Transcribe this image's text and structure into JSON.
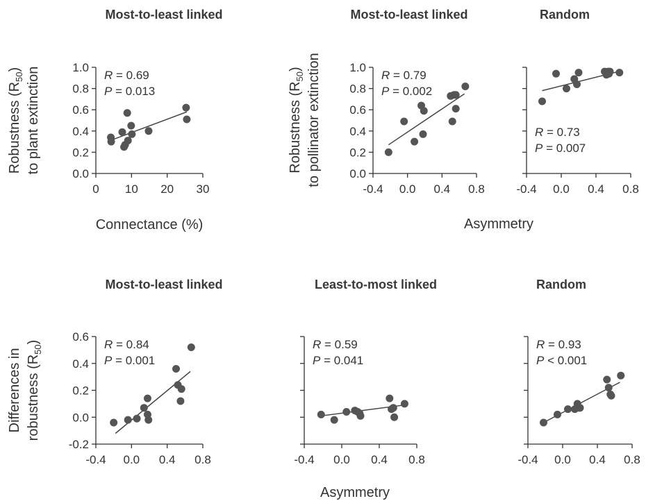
{
  "figure": {
    "shared_labels": {
      "asymmetry_top": "Asymmetry",
      "asymmetry_bottom": "Asymmetry",
      "robustness_pollinator_line1": "Robustness (R",
      "robustness_pollinator_sub": "50",
      "robustness_pollinator_close": ")",
      "robustness_pollinator_line2": "to pollinator extinction"
    }
  },
  "chart_data": [
    {
      "type": "scatter",
      "title": "Most-to-least linked",
      "xlabel": "Connectance (%)",
      "ylabel_line1": "Robustness (R",
      "ylabel_sub": "50",
      "ylabel_close": ")",
      "ylabel_line2": "to plant extinction",
      "xlim": [
        0,
        30
      ],
      "ylim": [
        0,
        1.0
      ],
      "xticks": [
        0,
        10,
        20,
        30
      ],
      "yticks": [
        0.0,
        0.2,
        0.4,
        0.6,
        0.8,
        1.0
      ],
      "xtick_labels": [
        "0",
        "10",
        "20",
        "30"
      ],
      "ytick_labels": [
        "0.0",
        "0.2",
        "0.4",
        "0.6",
        "0.8",
        "1.0"
      ],
      "stat_R": "= 0.69",
      "stat_P": "= 0.013",
      "stat_pos": "top-left",
      "x": [
        4.2,
        4.3,
        7.4,
        7.9,
        8.2,
        8.8,
        9.0,
        9.9,
        10.1,
        14.8,
        25.3,
        25.5
      ],
      "y": [
        0.34,
        0.3,
        0.39,
        0.25,
        0.27,
        0.57,
        0.31,
        0.45,
        0.37,
        0.4,
        0.62,
        0.51
      ],
      "fit": [
        [
          4,
          0.31
        ],
        [
          25.5,
          0.58
        ]
      ]
    },
    {
      "type": "scatter",
      "title": "Most-to-least linked",
      "xlim": [
        -0.4,
        0.8
      ],
      "ylim": [
        0,
        1.0
      ],
      "xticks": [
        -0.4,
        0.0,
        0.4,
        0.8
      ],
      "yticks": [
        0.0,
        0.2,
        0.4,
        0.6,
        0.8,
        1.0
      ],
      "xtick_labels": [
        "-0.4",
        "0.0",
        "0.4",
        "0.8"
      ],
      "ytick_labels": [
        "0.0",
        "0.2",
        "0.4",
        "0.6",
        "0.8",
        "1.0"
      ],
      "stat_R": "= 0.79",
      "stat_P": "= 0.002",
      "stat_pos": "top-left",
      "x": [
        -0.22,
        -0.04,
        0.08,
        0.16,
        0.18,
        0.19,
        0.5,
        0.52,
        0.54,
        0.56,
        0.56,
        0.67
      ],
      "y": [
        0.2,
        0.49,
        0.3,
        0.64,
        0.37,
        0.59,
        0.73,
        0.49,
        0.74,
        0.74,
        0.61,
        0.82
      ],
      "fit": [
        [
          -0.22,
          0.27
        ],
        [
          0.66,
          0.75
        ]
      ]
    },
    {
      "type": "scatter",
      "title": "Random",
      "xlim": [
        -0.4,
        0.8
      ],
      "ylim": [
        0,
        1.0
      ],
      "xticks": [
        -0.4,
        0.0,
        0.4,
        0.8
      ],
      "yticks": [
        0.0,
        0.2,
        0.4,
        0.6,
        0.8,
        1.0
      ],
      "xtick_labels": [
        "-0.4",
        "0.0",
        "0.4",
        "0.8"
      ],
      "ytick_labels": [],
      "stat_R": "= 0.73",
      "stat_P": "= 0.007",
      "stat_pos": "bottom-left",
      "x": [
        -0.22,
        -0.06,
        0.06,
        0.15,
        0.18,
        0.2,
        0.5,
        0.52,
        0.54,
        0.55,
        0.56,
        0.67
      ],
      "y": [
        0.68,
        0.94,
        0.8,
        0.89,
        0.84,
        0.95,
        0.96,
        0.93,
        0.96,
        0.94,
        0.96,
        0.95
      ],
      "fit": [
        [
          -0.22,
          0.78
        ],
        [
          0.66,
          0.96
        ]
      ]
    },
    {
      "type": "scatter",
      "title": "Most-to-least linked",
      "ylabel_line1": "Differences in",
      "ylabel_line2": "robustness (R",
      "ylabel_sub": "50",
      "ylabel_close": ")",
      "xlim": [
        -0.4,
        0.8
      ],
      "ylim": [
        -0.2,
        0.6
      ],
      "xticks": [
        -0.4,
        0.0,
        0.4,
        0.8
      ],
      "yticks": [
        -0.2,
        0.0,
        0.2,
        0.4,
        0.6
      ],
      "xtick_labels": [
        "-0.4",
        "0.0",
        "0.4",
        "0.8"
      ],
      "ytick_labels": [
        "-0.2",
        "0.0",
        "0.2",
        "0.4",
        "0.6"
      ],
      "stat_R": "= 0.84",
      "stat_P": "= 0.001",
      "stat_pos": "top-left",
      "x": [
        -0.2,
        -0.04,
        0.06,
        0.14,
        0.18,
        0.18,
        0.19,
        0.5,
        0.52,
        0.55,
        0.56,
        0.67
      ],
      "y": [
        -0.04,
        -0.02,
        -0.01,
        0.07,
        0.14,
        0.02,
        -0.02,
        0.36,
        0.24,
        0.12,
        0.21,
        0.52
      ],
      "fit": [
        [
          -0.18,
          -0.12
        ],
        [
          0.66,
          0.34
        ]
      ]
    },
    {
      "type": "scatter",
      "title": "Least-to-most linked",
      "xlim": [
        -0.4,
        0.8
      ],
      "ylim": [
        -0.2,
        0.6
      ],
      "xticks": [
        -0.4,
        0.0,
        0.4,
        0.8
      ],
      "yticks": [
        -0.2,
        0.0,
        0.2,
        0.4,
        0.6
      ],
      "xtick_labels": [
        "-0.4",
        "0.0",
        "0.4",
        "0.8"
      ],
      "ytick_labels": [],
      "stat_R": "= 0.59",
      "stat_P": "= 0.041",
      "stat_pos": "top-left",
      "x": [
        -0.22,
        -0.08,
        0.05,
        0.14,
        0.17,
        0.19,
        0.2,
        0.51,
        0.53,
        0.55,
        0.56,
        0.67
      ],
      "y": [
        0.02,
        -0.02,
        0.04,
        0.05,
        0.04,
        0.03,
        0.01,
        0.14,
        0.06,
        0.07,
        0.0,
        0.1
      ],
      "fit": [
        [
          -0.22,
          0.01
        ],
        [
          0.66,
          0.09
        ]
      ]
    },
    {
      "type": "scatter",
      "title": "Random",
      "xlim": [
        -0.4,
        0.8
      ],
      "ylim": [
        -0.2,
        0.6
      ],
      "xticks": [
        -0.4,
        0.0,
        0.4,
        0.8
      ],
      "yticks": [
        -0.2,
        0.0,
        0.2,
        0.4,
        0.6
      ],
      "xtick_labels": [
        "-0.4",
        "0.0",
        "0.4",
        "0.8"
      ],
      "ytick_labels": [],
      "stat_R": "= 0.93",
      "stat_P": "< 0.001",
      "stat_pos": "top-left",
      "x": [
        -0.22,
        -0.06,
        0.06,
        0.14,
        0.17,
        0.19,
        0.2,
        0.51,
        0.53,
        0.55,
        0.56,
        0.67
      ],
      "y": [
        -0.04,
        0.02,
        0.06,
        0.06,
        0.1,
        0.07,
        0.07,
        0.28,
        0.22,
        0.17,
        0.16,
        0.31
      ],
      "fit": [
        [
          -0.22,
          -0.04
        ],
        [
          0.66,
          0.26
        ]
      ]
    }
  ]
}
